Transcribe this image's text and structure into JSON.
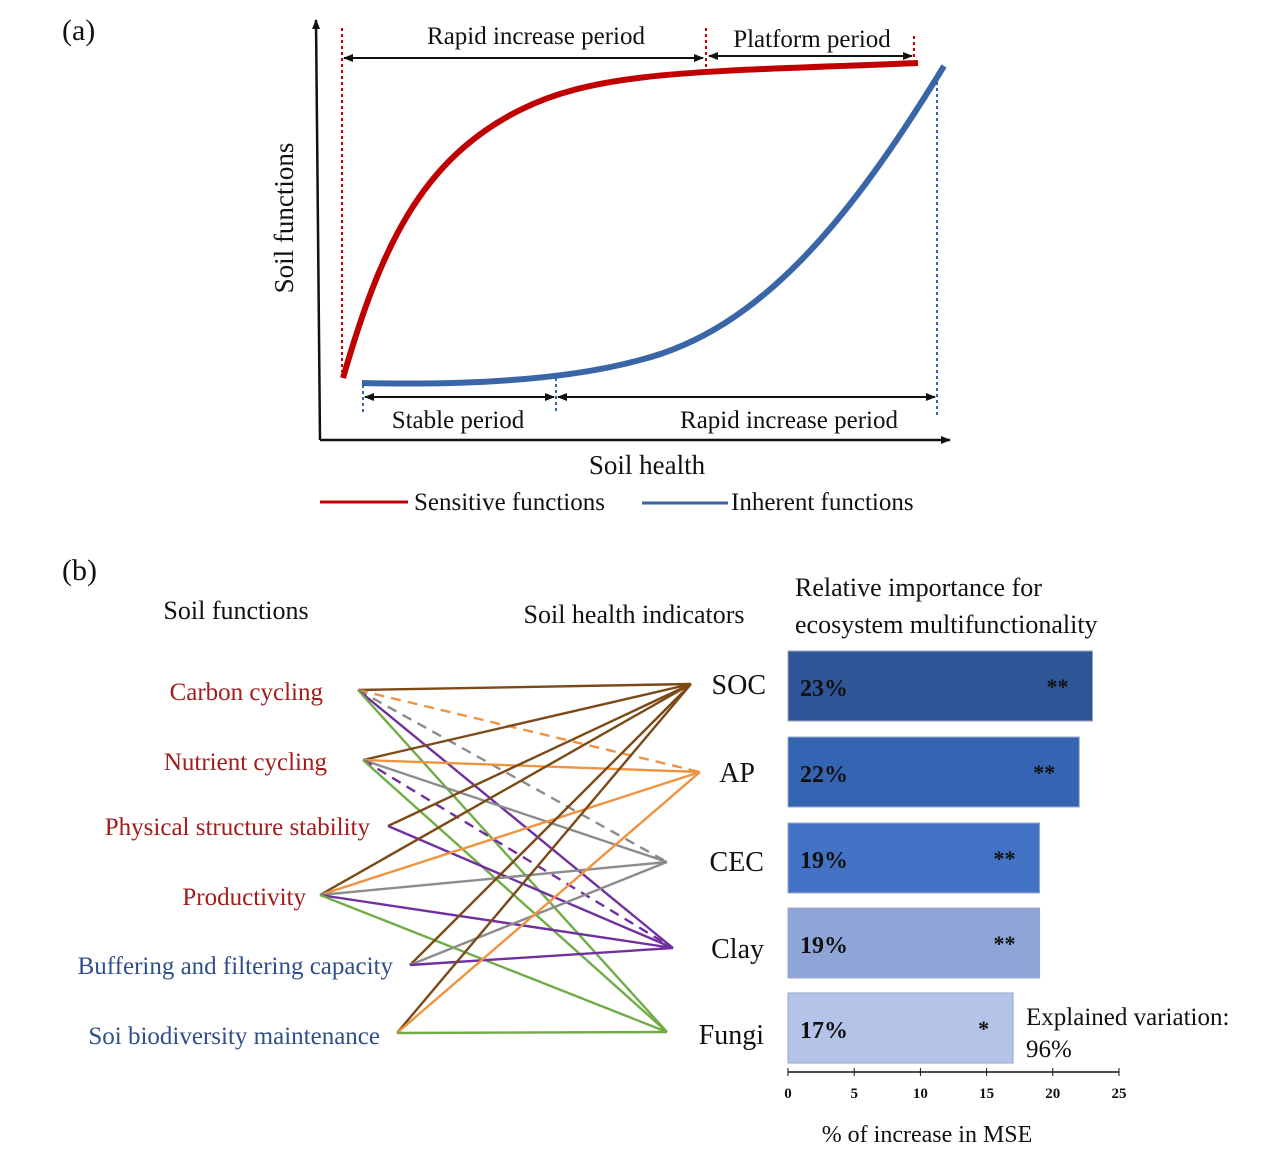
{
  "panel_a": {
    "label": "(a)",
    "y_axis_label": "Soil functions",
    "x_axis_label": "Soil health",
    "top_periods": [
      "Rapid increase period",
      "Platform period"
    ],
    "bottom_periods": [
      "Stable period",
      "Rapid increase period"
    ],
    "legend": [
      {
        "label": "Sensitive functions",
        "color": "#c00000"
      },
      {
        "label": "Inherent functions",
        "color": "#3a66a8"
      }
    ]
  },
  "panel_b": {
    "label": "(b)",
    "functions_header": "Soil functions",
    "indicators_header": "Soil health indicators",
    "importance_header": [
      "Relative importance for",
      "ecosystem multifunctionality"
    ],
    "functions": [
      {
        "label": "Carbon cycling",
        "group": "sensitive"
      },
      {
        "label": "Nutrient cycling",
        "group": "sensitive"
      },
      {
        "label": "Physical structure stability",
        "group": "sensitive"
      },
      {
        "label": "Productivity",
        "group": "sensitive"
      },
      {
        "label": "Buffering and filtering capacity",
        "group": "inherent"
      },
      {
        "label": "Soi biodiversity maintenance",
        "group": "inherent"
      }
    ],
    "indicators": [
      "SOC",
      "AP",
      "CEC",
      "Clay",
      "Fungi"
    ],
    "indicator_colors": {
      "SOC": "#7b4a17",
      "AP": "#ee9441",
      "CEC": "#8c8c8c",
      "Clay": "#7030a0",
      "Fungi": "#70ad47"
    },
    "links": [
      {
        "from": 0,
        "to": "SOC",
        "dashed": false
      },
      {
        "from": 0,
        "to": "AP",
        "dashed": true
      },
      {
        "from": 0,
        "to": "CEC",
        "dashed": true
      },
      {
        "from": 0,
        "to": "Clay",
        "dashed": false
      },
      {
        "from": 0,
        "to": "Fungi",
        "dashed": false
      },
      {
        "from": 1,
        "to": "SOC",
        "dashed": false
      },
      {
        "from": 1,
        "to": "AP",
        "dashed": false
      },
      {
        "from": 1,
        "to": "CEC",
        "dashed": false
      },
      {
        "from": 1,
        "to": "Clay",
        "dashed": true
      },
      {
        "from": 1,
        "to": "Fungi",
        "dashed": false
      },
      {
        "from": 2,
        "to": "SOC",
        "dashed": false
      },
      {
        "from": 2,
        "to": "Clay",
        "dashed": false
      },
      {
        "from": 3,
        "to": "SOC",
        "dashed": false
      },
      {
        "from": 3,
        "to": "AP",
        "dashed": false
      },
      {
        "from": 3,
        "to": "CEC",
        "dashed": false
      },
      {
        "from": 3,
        "to": "Clay",
        "dashed": false
      },
      {
        "from": 3,
        "to": "Fungi",
        "dashed": false
      },
      {
        "from": 4,
        "to": "SOC",
        "dashed": false
      },
      {
        "from": 4,
        "to": "CEC",
        "dashed": false
      },
      {
        "from": 4,
        "to": "Clay",
        "dashed": false
      },
      {
        "from": 5,
        "to": "SOC",
        "dashed": false
      },
      {
        "from": 5,
        "to": "AP",
        "dashed": false
      },
      {
        "from": 5,
        "to": "Fungi",
        "dashed": false
      }
    ],
    "explained_variation": [
      "Explained variation:",
      "96%"
    ]
  },
  "chart_data": {
    "type": "bar",
    "orientation": "horizontal",
    "categories": [
      "SOC",
      "AP",
      "CEC",
      "Clay",
      "Fungi"
    ],
    "values": [
      23,
      22,
      19,
      19,
      17
    ],
    "labels": [
      "23%",
      "22%",
      "19%",
      "19%",
      "17%"
    ],
    "significance": [
      "**",
      "**",
      "**",
      "**",
      "*"
    ],
    "colors": [
      "#2f5597",
      "#3564b3",
      "#4472c4",
      "#8fa5d8",
      "#b4c4e8"
    ],
    "xlabel": "% of increase in MSE",
    "xlim": [
      0,
      25
    ],
    "xticks": [
      "0",
      "5",
      "10",
      "15",
      "20",
      "25"
    ]
  }
}
